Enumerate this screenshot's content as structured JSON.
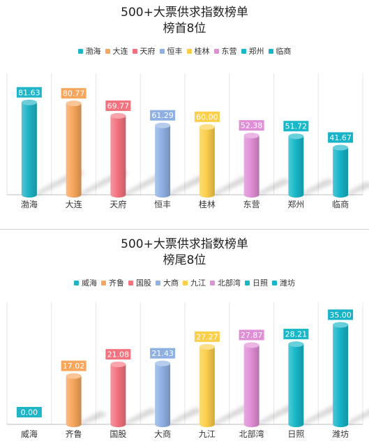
{
  "colors": [
    "#1fb4c6",
    "#f7a65d",
    "#f2737f",
    "#8fb0e3",
    "#fbcf4a",
    "#e08ed6",
    "#18b8c9",
    "#17b3c8"
  ],
  "chart_data": [
    {
      "type": "bar",
      "title": "500+大票供求指数榜单",
      "subtitle": "榜首8位",
      "categories": [
        "渤海",
        "大连",
        "天府",
        "恒丰",
        "桂林",
        "东营",
        "郑州",
        "临商"
      ],
      "values": [
        81.63,
        80.77,
        69.77,
        61.29,
        60.0,
        52.38,
        51.72,
        41.67
      ],
      "value_labels": [
        "81.63",
        "80.77",
        "69.77",
        "61.29",
        "60.00",
        "52.38",
        "51.72",
        "41.67"
      ],
      "ylim": [
        0,
        100
      ],
      "legend": "top"
    },
    {
      "type": "bar",
      "title": "500+大票供求指数榜单",
      "subtitle": "榜尾8位",
      "categories": [
        "威海",
        "齐鲁",
        "国股",
        "大商",
        "九江",
        "北部湾",
        "日照",
        "潍坊"
      ],
      "values": [
        0.0,
        17.02,
        21.08,
        21.43,
        27.27,
        27.87,
        28.21,
        35.0
      ],
      "value_labels": [
        "0.00",
        "17.02",
        "21.08",
        "21.43",
        "27.27",
        "27.87",
        "28.21",
        "35.00"
      ],
      "ylim": [
        0,
        40
      ],
      "legend": "top"
    }
  ]
}
